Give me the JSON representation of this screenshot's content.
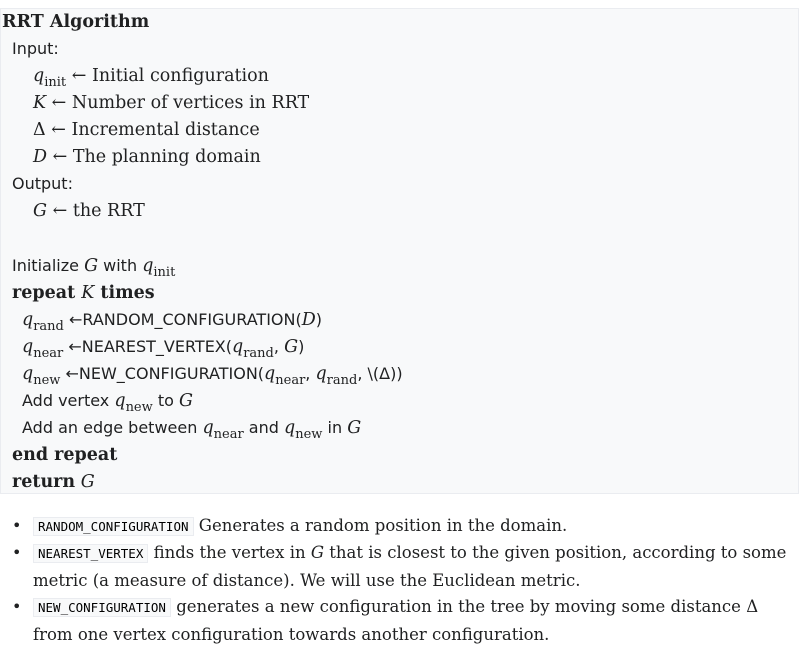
{
  "algorithm": {
    "title": "RRT Algorithm",
    "input_label": "Input:",
    "inputs": [
      {
        "var": "q",
        "sub": "init",
        "arrow": "←",
        "desc": "Initial configuration"
      },
      {
        "var": "K",
        "arrow": "←",
        "desc": "Number of vertices in RRT"
      },
      {
        "sym": "Δ",
        "arrow": "←",
        "desc": "Incremental distance"
      },
      {
        "var": "D",
        "arrow": "←",
        "desc": "The planning domain"
      }
    ],
    "output_label": "Output:",
    "output": {
      "var": "G",
      "arrow": "←",
      "desc": "the RRT"
    },
    "init_line": {
      "text1": "Initialize",
      "var": "G",
      "with": "with",
      "qvar": "q",
      "sub": "init"
    },
    "repeat": {
      "kw": "repeat",
      "var": "K",
      "times": "times"
    },
    "body": {
      "rand": {
        "qvar": "q",
        "sub": "rand",
        "arrow": "←",
        "func": "RANDOM_CONFIGURATION(",
        "arg": "D",
        "close": ")"
      },
      "near": {
        "qvar": "q",
        "sub": "near",
        "arrow": "←",
        "func": "NEAREST_VERTEX(",
        "arg_q": "q",
        "arg_sub": "rand",
        "comma": ",",
        "arg2": "G",
        "close": ")"
      },
      "new": {
        "qvar": "q",
        "sub": "new",
        "arrow": "←",
        "func": "NEW_CONFIGURATION(",
        "a1": "q",
        "a1sub": "near",
        "comma1": ",",
        "a2": "q",
        "a2sub": "rand",
        "comma2": ",",
        "a3": "\\(Δ))"
      },
      "add_vertex": {
        "text": "Add vertex",
        "qvar": "q",
        "sub": "new",
        "to": "to",
        "var": "G"
      },
      "add_edge": {
        "text": "Add an edge between",
        "q1": "q",
        "s1": "near",
        "and": "and",
        "q2": "q",
        "s2": "new",
        "in": "in",
        "var": "G"
      }
    },
    "end_repeat": "end repeat",
    "return_kw": "return",
    "return_var": "G"
  },
  "notes": [
    {
      "bullet": "•",
      "code": "RANDOM_CONFIGURATION",
      "text": "Generates a random position in the domain."
    },
    {
      "bullet": "•",
      "code": "NEAREST_VERTEX",
      "text_a": "finds the vertex in",
      "var": "G",
      "text_b": "that is closest to the given position, according to some metric (a measure of distance). We will use the Euclidean metric."
    },
    {
      "bullet": "•",
      "code": "NEW_CONFIGURATION",
      "text_a": "generates a new configuration in the tree by moving some distance",
      "sym": "Δ",
      "text_b": "from one vertex configuration towards another configuration."
    }
  ]
}
